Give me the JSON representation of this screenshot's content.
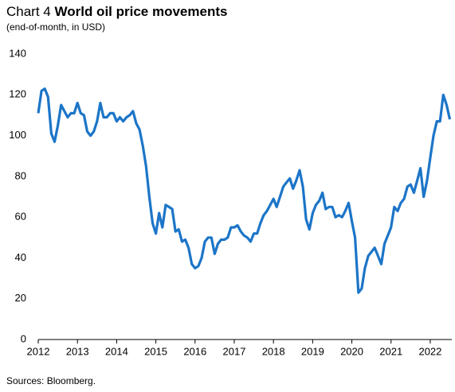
{
  "chart_data": {
    "type": "line",
    "chart_number": "Chart 4",
    "title": "World oil price movements",
    "subtitle": "(end-of-month, in USD)",
    "source": "Sources: Bloomberg.",
    "color": "#1c75c8",
    "x": [
      2012,
      2012.083,
      2012.167,
      2012.25,
      2012.333,
      2012.417,
      2012.5,
      2012.583,
      2012.667,
      2012.75,
      2012.833,
      2012.917,
      2013,
      2013.083,
      2013.167,
      2013.25,
      2013.333,
      2013.417,
      2013.5,
      2013.583,
      2013.667,
      2013.75,
      2013.833,
      2013.917,
      2014,
      2014.083,
      2014.167,
      2014.25,
      2014.333,
      2014.417,
      2014.5,
      2014.583,
      2014.667,
      2014.75,
      2014.833,
      2014.917,
      2015,
      2015.083,
      2015.167,
      2015.25,
      2015.333,
      2015.417,
      2015.5,
      2015.583,
      2015.667,
      2015.75,
      2015.833,
      2015.917,
      2016,
      2016.083,
      2016.167,
      2016.25,
      2016.333,
      2016.417,
      2016.5,
      2016.583,
      2016.667,
      2016.75,
      2016.833,
      2016.917,
      2017,
      2017.083,
      2017.167,
      2017.25,
      2017.333,
      2017.417,
      2017.5,
      2017.583,
      2017.667,
      2017.75,
      2017.833,
      2017.917,
      2018,
      2018.083,
      2018.167,
      2018.25,
      2018.333,
      2018.417,
      2018.5,
      2018.583,
      2018.667,
      2018.75,
      2018.833,
      2018.917,
      2019,
      2019.083,
      2019.167,
      2019.25,
      2019.333,
      2019.417,
      2019.5,
      2019.583,
      2019.667,
      2019.75,
      2019.833,
      2019.917,
      2020,
      2020.083,
      2020.167,
      2020.25,
      2020.333,
      2020.417,
      2020.5,
      2020.583,
      2020.667,
      2020.75,
      2020.833,
      2020.917,
      2021,
      2021.083,
      2021.167,
      2021.25,
      2021.333,
      2021.417,
      2021.5,
      2021.583,
      2021.667,
      2021.75,
      2021.833,
      2021.917,
      2022,
      2022.083,
      2022.167,
      2022.25,
      2022.333,
      2022.417,
      2022.5
    ],
    "values": [
      111,
      122,
      123,
      119,
      101,
      97,
      105,
      115,
      112,
      109,
      111,
      111,
      116,
      111,
      110,
      102,
      100,
      102,
      107,
      116,
      109,
      109,
      111,
      111,
      107,
      109,
      107,
      109,
      110,
      112,
      106,
      103,
      95,
      85,
      70,
      57,
      52,
      62,
      55,
      66,
      65,
      64,
      53,
      54,
      48,
      49,
      45,
      37,
      35,
      36,
      40,
      48,
      50,
      50,
      42,
      47,
      49,
      49,
      50,
      55,
      55,
      56,
      53,
      51,
      50,
      48,
      52,
      52,
      57,
      61,
      63,
      66,
      69,
      65,
      70,
      75,
      77,
      79,
      74,
      78,
      83,
      75,
      59,
      54,
      62,
      66,
      68,
      72,
      64,
      65,
      65,
      60,
      61,
      60,
      63,
      67,
      58,
      50,
      23,
      25,
      35,
      41,
      43,
      45,
      41,
      37,
      47,
      51,
      55,
      65,
      63,
      67,
      69,
      75,
      76,
      72,
      78,
      84,
      70,
      78,
      89,
      100,
      107,
      107,
      120,
      115,
      108
    ],
    "xlim": [
      2012,
      2022.55
    ],
    "xticks": [
      2012,
      2013,
      2014,
      2015,
      2016,
      2017,
      2018,
      2019,
      2020,
      2021,
      2022
    ],
    "ylim": [
      0,
      140
    ],
    "yticks": [
      0,
      20,
      40,
      60,
      80,
      100,
      120,
      140
    ]
  }
}
